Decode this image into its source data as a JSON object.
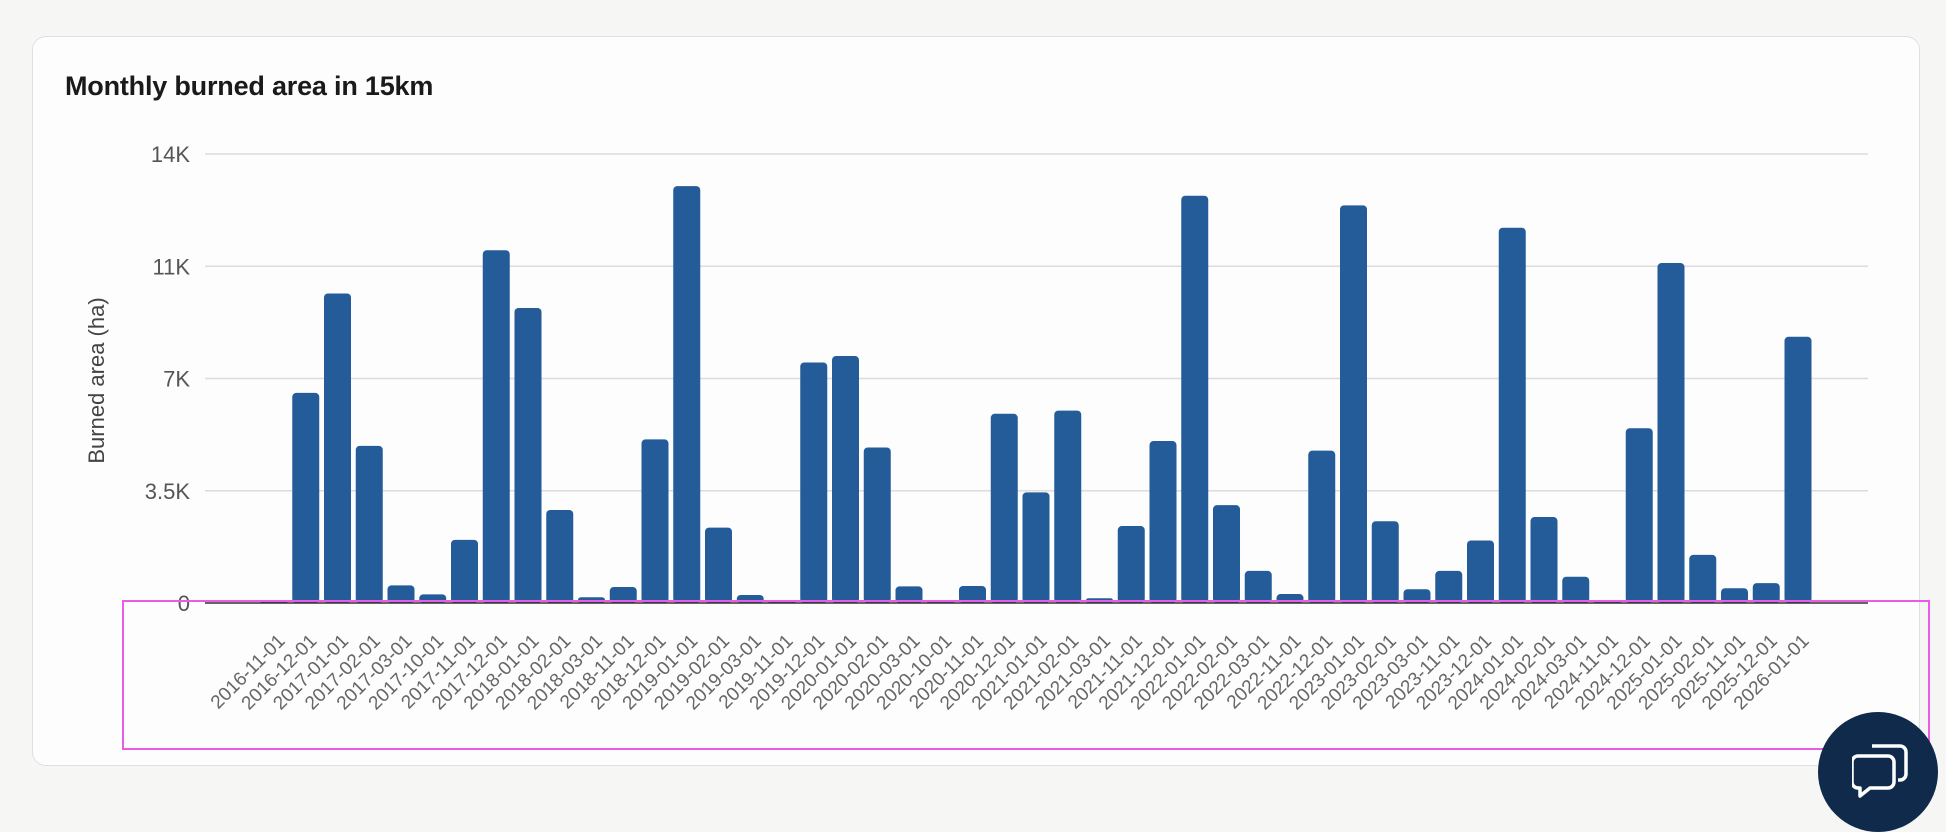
{
  "card": {
    "title": "Monthly burned area in 15km"
  },
  "colors": {
    "bar": "#245c9a",
    "grid": "#dcdcdc",
    "chat_button": "#0f2a4a",
    "highlight": "#e85ce8"
  },
  "chat_button": {
    "icon": "chat-bubbles-icon"
  },
  "chart_data": {
    "type": "bar",
    "title": "Monthly burned area in 15km",
    "xlabel": "",
    "ylabel": "Burned area (ha)",
    "ylim": [
      0,
      14000
    ],
    "y_ticks": [
      0,
      3500,
      7000,
      10500,
      14000
    ],
    "y_tick_labels": [
      "0",
      "3.5K",
      "7K",
      "11K",
      "14K"
    ],
    "grid": true,
    "legend": "none",
    "categories": [
      "2016-11-01",
      "2016-12-01",
      "2017-01-01",
      "2017-02-01",
      "2017-03-01",
      "2017-10-01",
      "2017-11-01",
      "2017-12-01",
      "2018-01-01",
      "2018-02-01",
      "2018-03-01",
      "2018-11-01",
      "2018-12-01",
      "2019-01-01",
      "2019-02-01",
      "2019-03-01",
      "2019-11-01",
      "2019-12-01",
      "2020-01-01",
      "2020-02-01",
      "2020-03-01",
      "2020-10-01",
      "2020-11-01",
      "2020-12-01",
      "2021-01-01",
      "2021-02-01",
      "2021-03-01",
      "2021-11-01",
      "2021-12-01",
      "2022-01-01",
      "2022-02-01",
      "2022-03-01",
      "2022-11-01",
      "2022-12-01",
      "2023-01-01",
      "2023-02-01",
      "2023-03-01",
      "2023-11-01",
      "2023-12-01",
      "2024-01-01",
      "2024-02-01",
      "2024-03-01",
      "2024-11-01",
      "2024-12-01",
      "2025-01-01",
      "2025-02-01",
      "2025-11-01",
      "2025-12-01",
      "2026-01-01"
    ],
    "values": [
      80,
      6550,
      9650,
      4900,
      550,
      270,
      1970,
      11000,
      9200,
      2900,
      180,
      500,
      5100,
      13000,
      2350,
      250,
      50,
      7500,
      7700,
      4850,
      520,
      20,
      530,
      5900,
      3450,
      6000,
      150,
      2400,
      5050,
      12700,
      3050,
      1000,
      280,
      4750,
      12400,
      2550,
      430,
      1000,
      1950,
      11700,
      2680,
      820,
      80,
      5450,
      10600,
      1500,
      460,
      620,
      8300
    ]
  }
}
